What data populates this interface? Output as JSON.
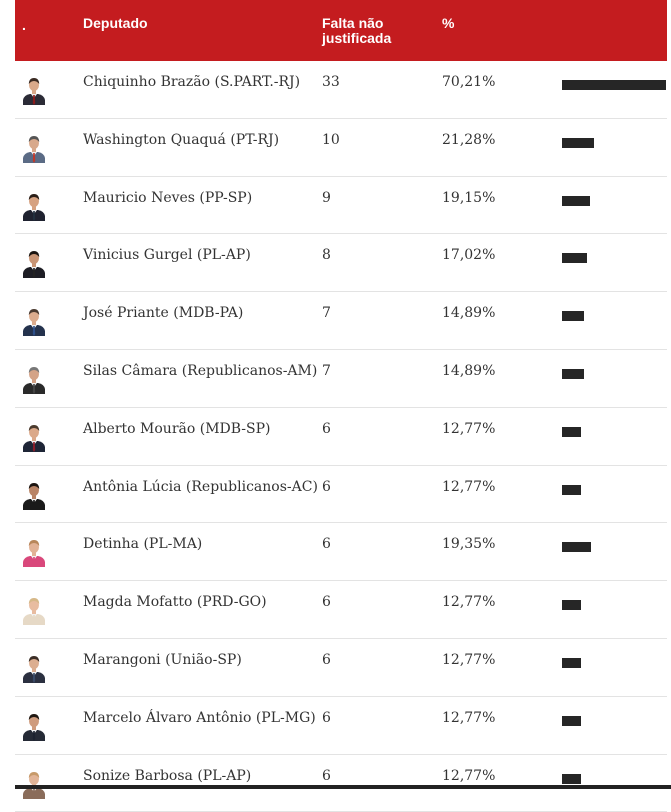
{
  "header": {
    "col_photo": ".",
    "col_deputado": "Deputado",
    "col_falta": "Falta não justificada",
    "col_pct": "%"
  },
  "chart_data": {
    "type": "bar",
    "categories": [
      "Chiquinho Brazão (S.PART.-RJ)",
      "Washington Quaquá (PT-RJ)",
      "Mauricio Neves (PP-SP)",
      "Vinicius Gurgel (PL-AP)",
      "José Priante (MDB-PA)",
      "Silas Câmara (Republicanos-AM)",
      "Alberto Mourão (MDB-SP)",
      "Antônia Lúcia (Republicanos-AC)",
      "Detinha (PL-MA)",
      "Magda Mofatto (PRD-GO)",
      "Marangoni (União-SP)",
      "Marcelo Álvaro Antônio (PL-MG)",
      "Sonize Barbosa (PL-AP)"
    ],
    "faltas": [
      "33",
      "10",
      "9",
      "8",
      "7",
      "7",
      "6",
      "6",
      "6",
      "6",
      "6",
      "6",
      "6"
    ],
    "pct_labels": [
      "70,21%",
      "21,28%",
      "19,15%",
      "17,02%",
      "14,89%",
      "14,89%",
      "12,77%",
      "12,77%",
      "19,35%",
      "12,77%",
      "12,77%",
      "12,77%",
      "12,77%"
    ],
    "values": [
      70.21,
      21.28,
      19.15,
      17.02,
      14.89,
      14.89,
      12.77,
      12.77,
      19.35,
      12.77,
      12.77,
      12.77,
      12.77
    ],
    "xlim": [
      0,
      70.21
    ],
    "bar_color": "#262626"
  },
  "avatars": [
    {
      "suit": "#2b2b36",
      "tie": "#8b1a1a",
      "hair": "#3a2a22",
      "skin": "#d9a98a",
      "bg": "#ffffff"
    },
    {
      "suit": "#5b6b85",
      "tie": "#c0392b",
      "hair": "#555555",
      "skin": "#d8a98c",
      "bg": "#ffffff"
    },
    {
      "suit": "#1f2230",
      "tie": "#22303f",
      "hair": "#2a1e18",
      "skin": "#d6a281",
      "bg": "#ffffff"
    },
    {
      "suit": "#1d1d24",
      "tie": "#222222",
      "hair": "#1a1410",
      "skin": "#c99575",
      "bg": "#ffffff"
    },
    {
      "suit": "#24324d",
      "tie": "#2d4f8a",
      "hair": "#4a3a30",
      "skin": "#dcac8e",
      "bg": "#ffffff"
    },
    {
      "suit": "#2a2a2a",
      "tie": "#444444",
      "hair": "#777777",
      "skin": "#d4a387",
      "bg": "#ffffff"
    },
    {
      "suit": "#1e2536",
      "tie": "#8a1d2a",
      "hair": "#4b3b2e",
      "skin": "#dba98a",
      "bg": "#ffffff"
    },
    {
      "suit": "#1a1a1a",
      "tie": "#1a1a1a",
      "hair": "#1b1410",
      "skin": "#b98466",
      "bg": "#ffffff"
    },
    {
      "suit": "#d9487b",
      "tie": "#d9487b",
      "hair": "#b8865a",
      "skin": "#e2b296",
      "bg": "#ffffff"
    },
    {
      "suit": "#e6d9c6",
      "tie": "#e6d9c6",
      "hair": "#d6b888",
      "skin": "#e8bca0",
      "bg": "#ffffff"
    },
    {
      "suit": "#2b3040",
      "tie": "#3a4a66",
      "hair": "#3b2e26",
      "skin": "#dcae90",
      "bg": "#ffffff"
    },
    {
      "suit": "#252a36",
      "tie": "#1c2230",
      "hair": "#1f1712",
      "skin": "#cf9c7e",
      "bg": "#ffffff"
    },
    {
      "suit": "#8a6c5a",
      "tie": "#8a6c5a",
      "hair": "#c79a6a",
      "skin": "#e2b598",
      "bg": "#ffffff"
    }
  ]
}
